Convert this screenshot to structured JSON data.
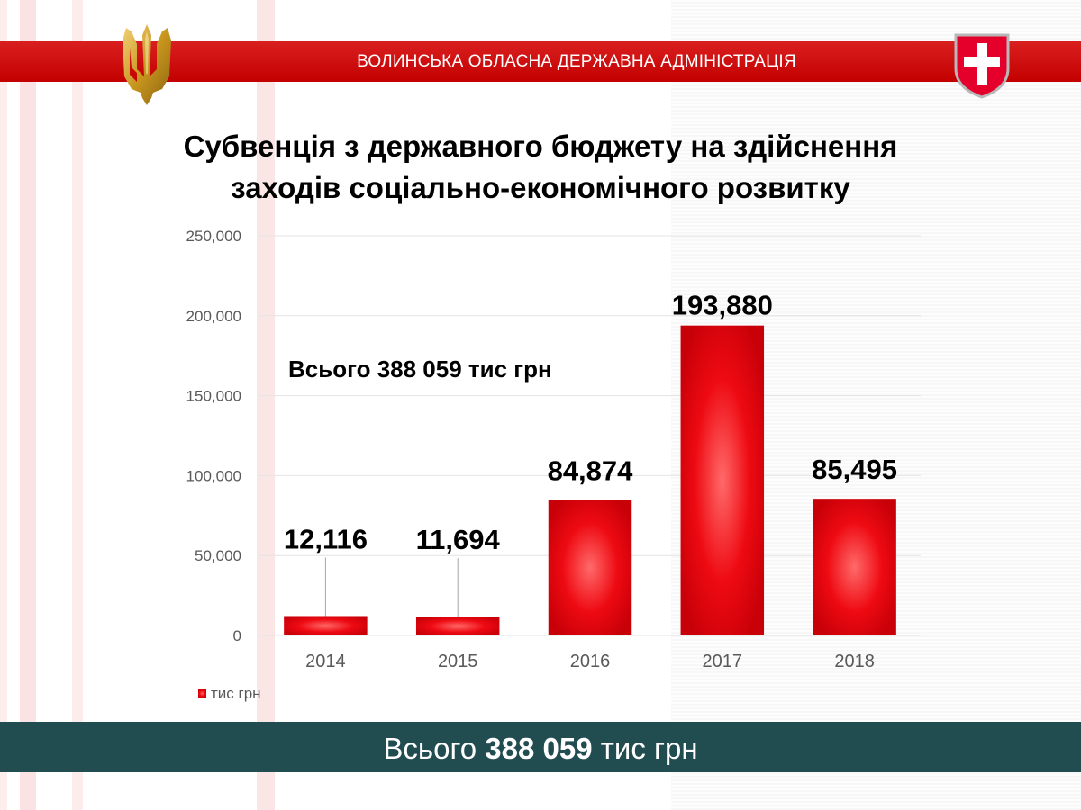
{
  "header": {
    "org_name": "ВОЛИНСЬКА ОБЛАСНА ДЕРЖАВНА АДМІНІСТРАЦІЯ",
    "color": "#d40000"
  },
  "emblems": {
    "left": "trident-icon",
    "right": "volyn-coat-of-arms-icon"
  },
  "title": {
    "line1": "Субвенція з державного бюджету на здійснення",
    "line2": "заходів соціально-економічного розвитку"
  },
  "chart_data": {
    "type": "bar",
    "categories": [
      "2014",
      "2015",
      "2016",
      "2017",
      "2018"
    ],
    "series": [
      {
        "name": "тис грн",
        "values": [
          12116,
          11694,
          84874,
          193880,
          85495
        ]
      }
    ],
    "data_labels": [
      "12,116",
      "11,694",
      "84,874",
      "193,880",
      "85,495"
    ],
    "ylim": [
      0,
      250000
    ],
    "yticks": [
      0,
      50000,
      100000,
      150000,
      200000,
      250000
    ],
    "ytick_labels": [
      "0",
      "50,000",
      "100,000",
      "150,000",
      "200,000",
      "250,000"
    ],
    "grid": true,
    "legend": "bottom-left",
    "annotation": "Всього 388 059 тис грн",
    "bar_color": "#e8000b"
  },
  "footer": {
    "prefix": "Всього",
    "amount": "388 059",
    "suffix": "тис грн",
    "color": "#214c50"
  }
}
